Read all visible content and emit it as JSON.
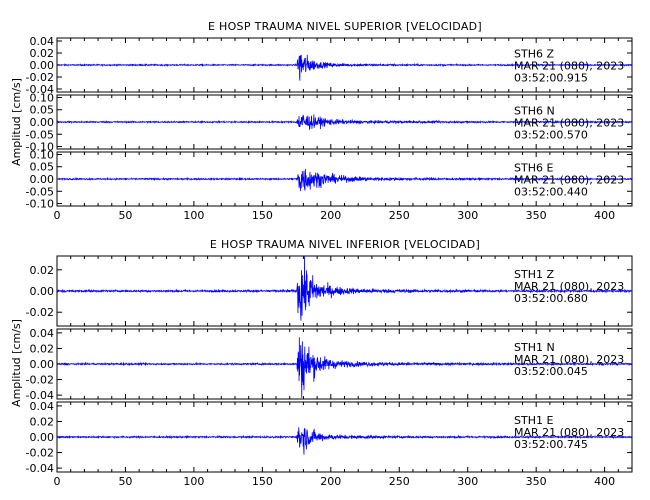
{
  "chart_data": [
    {
      "type": "line",
      "title": "E HOSP TRAUMA NIVEL SUPERIOR [VELOCIDAD]",
      "ylabel": "Amplitud [cm/s]",
      "xlabel": "",
      "xlim": [
        0,
        420
      ],
      "x_ticks": [
        "0",
        "50",
        "100",
        "150",
        "200",
        "250",
        "300",
        "350",
        "400"
      ],
      "series_color": "#0000ff",
      "panels": [
        {
          "station": "STH6",
          "component": "Z",
          "date": "MAR 21 (080), 2023",
          "time": "03:52:00.915",
          "ylim": [
            -0.045,
            0.045
          ],
          "y_ticks": [
            "0.04",
            "0.02",
            "0.00",
            "-0.02",
            "-0.04"
          ],
          "y_tick_values": [
            0.04,
            0.02,
            0.0,
            -0.02,
            -0.04
          ],
          "noise": 0.0009,
          "event_start": 175,
          "peak": 0.028,
          "decay": 6,
          "tail": 30
        },
        {
          "station": "STH6",
          "component": "N",
          "date": "MAR 21 (080), 2023",
          "time": "03:52:00.570",
          "ylim": [
            -0.11,
            0.11
          ],
          "y_ticks": [
            "0.10",
            "0.05",
            "0.00",
            "-0.05",
            "-0.10"
          ],
          "y_tick_values": [
            0.1,
            0.05,
            0.0,
            -0.05,
            -0.1
          ],
          "noise": 0.0025,
          "event_start": 175,
          "peak": 0.04,
          "decay": 12,
          "tail": 60
        },
        {
          "station": "STH6",
          "component": "E",
          "date": "MAR 21 (080), 2023",
          "time": "03:52:00.440",
          "ylim": [
            -0.11,
            0.11
          ],
          "y_ticks": [
            "0.10",
            "0.05",
            "0.00",
            "-0.05",
            "-0.10"
          ],
          "y_tick_values": [
            0.1,
            0.05,
            0.0,
            -0.05,
            -0.1
          ],
          "noise": 0.0025,
          "event_start": 175,
          "peak": 0.055,
          "decay": 14,
          "tail": 55
        }
      ]
    },
    {
      "type": "line",
      "title": "E HOSP TRAUMA NIVEL INFERIOR [VELOCIDAD]",
      "ylabel": "Amplitud [cm/s]",
      "xlabel": "",
      "xlim": [
        0,
        420
      ],
      "x_ticks": [
        "0",
        "50",
        "100",
        "150",
        "200",
        "250",
        "300",
        "350",
        "400"
      ],
      "series_color": "#0000ff",
      "panels": [
        {
          "station": "STH1",
          "component": "Z",
          "date": "MAR 21 (080), 2023",
          "time": "03:52:00.680",
          "ylim": [
            -0.033,
            0.033
          ],
          "y_ticks": [
            "0.02",
            "0.00",
            "-0.02"
          ],
          "y_tick_values": [
            0.02,
            0.0,
            -0.02
          ],
          "noise": 0.0008,
          "event_start": 175,
          "peak": 0.03,
          "decay": 8,
          "tail": 40
        },
        {
          "station": "STH1",
          "component": "N",
          "date": "MAR 21 (080), 2023",
          "time": "03:52:00.045",
          "ylim": [
            -0.045,
            0.045
          ],
          "y_ticks": [
            "0.04",
            "0.02",
            "0.00",
            "-0.02",
            "-0.04"
          ],
          "y_tick_values": [
            0.04,
            0.02,
            0.0,
            -0.02,
            -0.04
          ],
          "noise": 0.0009,
          "event_start": 175,
          "peak": 0.04,
          "decay": 8,
          "tail": 40
        },
        {
          "station": "STH1",
          "component": "E",
          "date": "MAR 21 (080), 2023",
          "time": "03:52:00.745",
          "ylim": [
            -0.045,
            0.045
          ],
          "y_ticks": [
            "0.04",
            "0.02",
            "0.00",
            "-0.02",
            "-0.04"
          ],
          "y_tick_values": [
            0.04,
            0.02,
            0.0,
            -0.02,
            -0.04
          ],
          "noise": 0.0009,
          "event_start": 175,
          "peak": 0.022,
          "decay": 7,
          "tail": 35
        }
      ]
    }
  ]
}
